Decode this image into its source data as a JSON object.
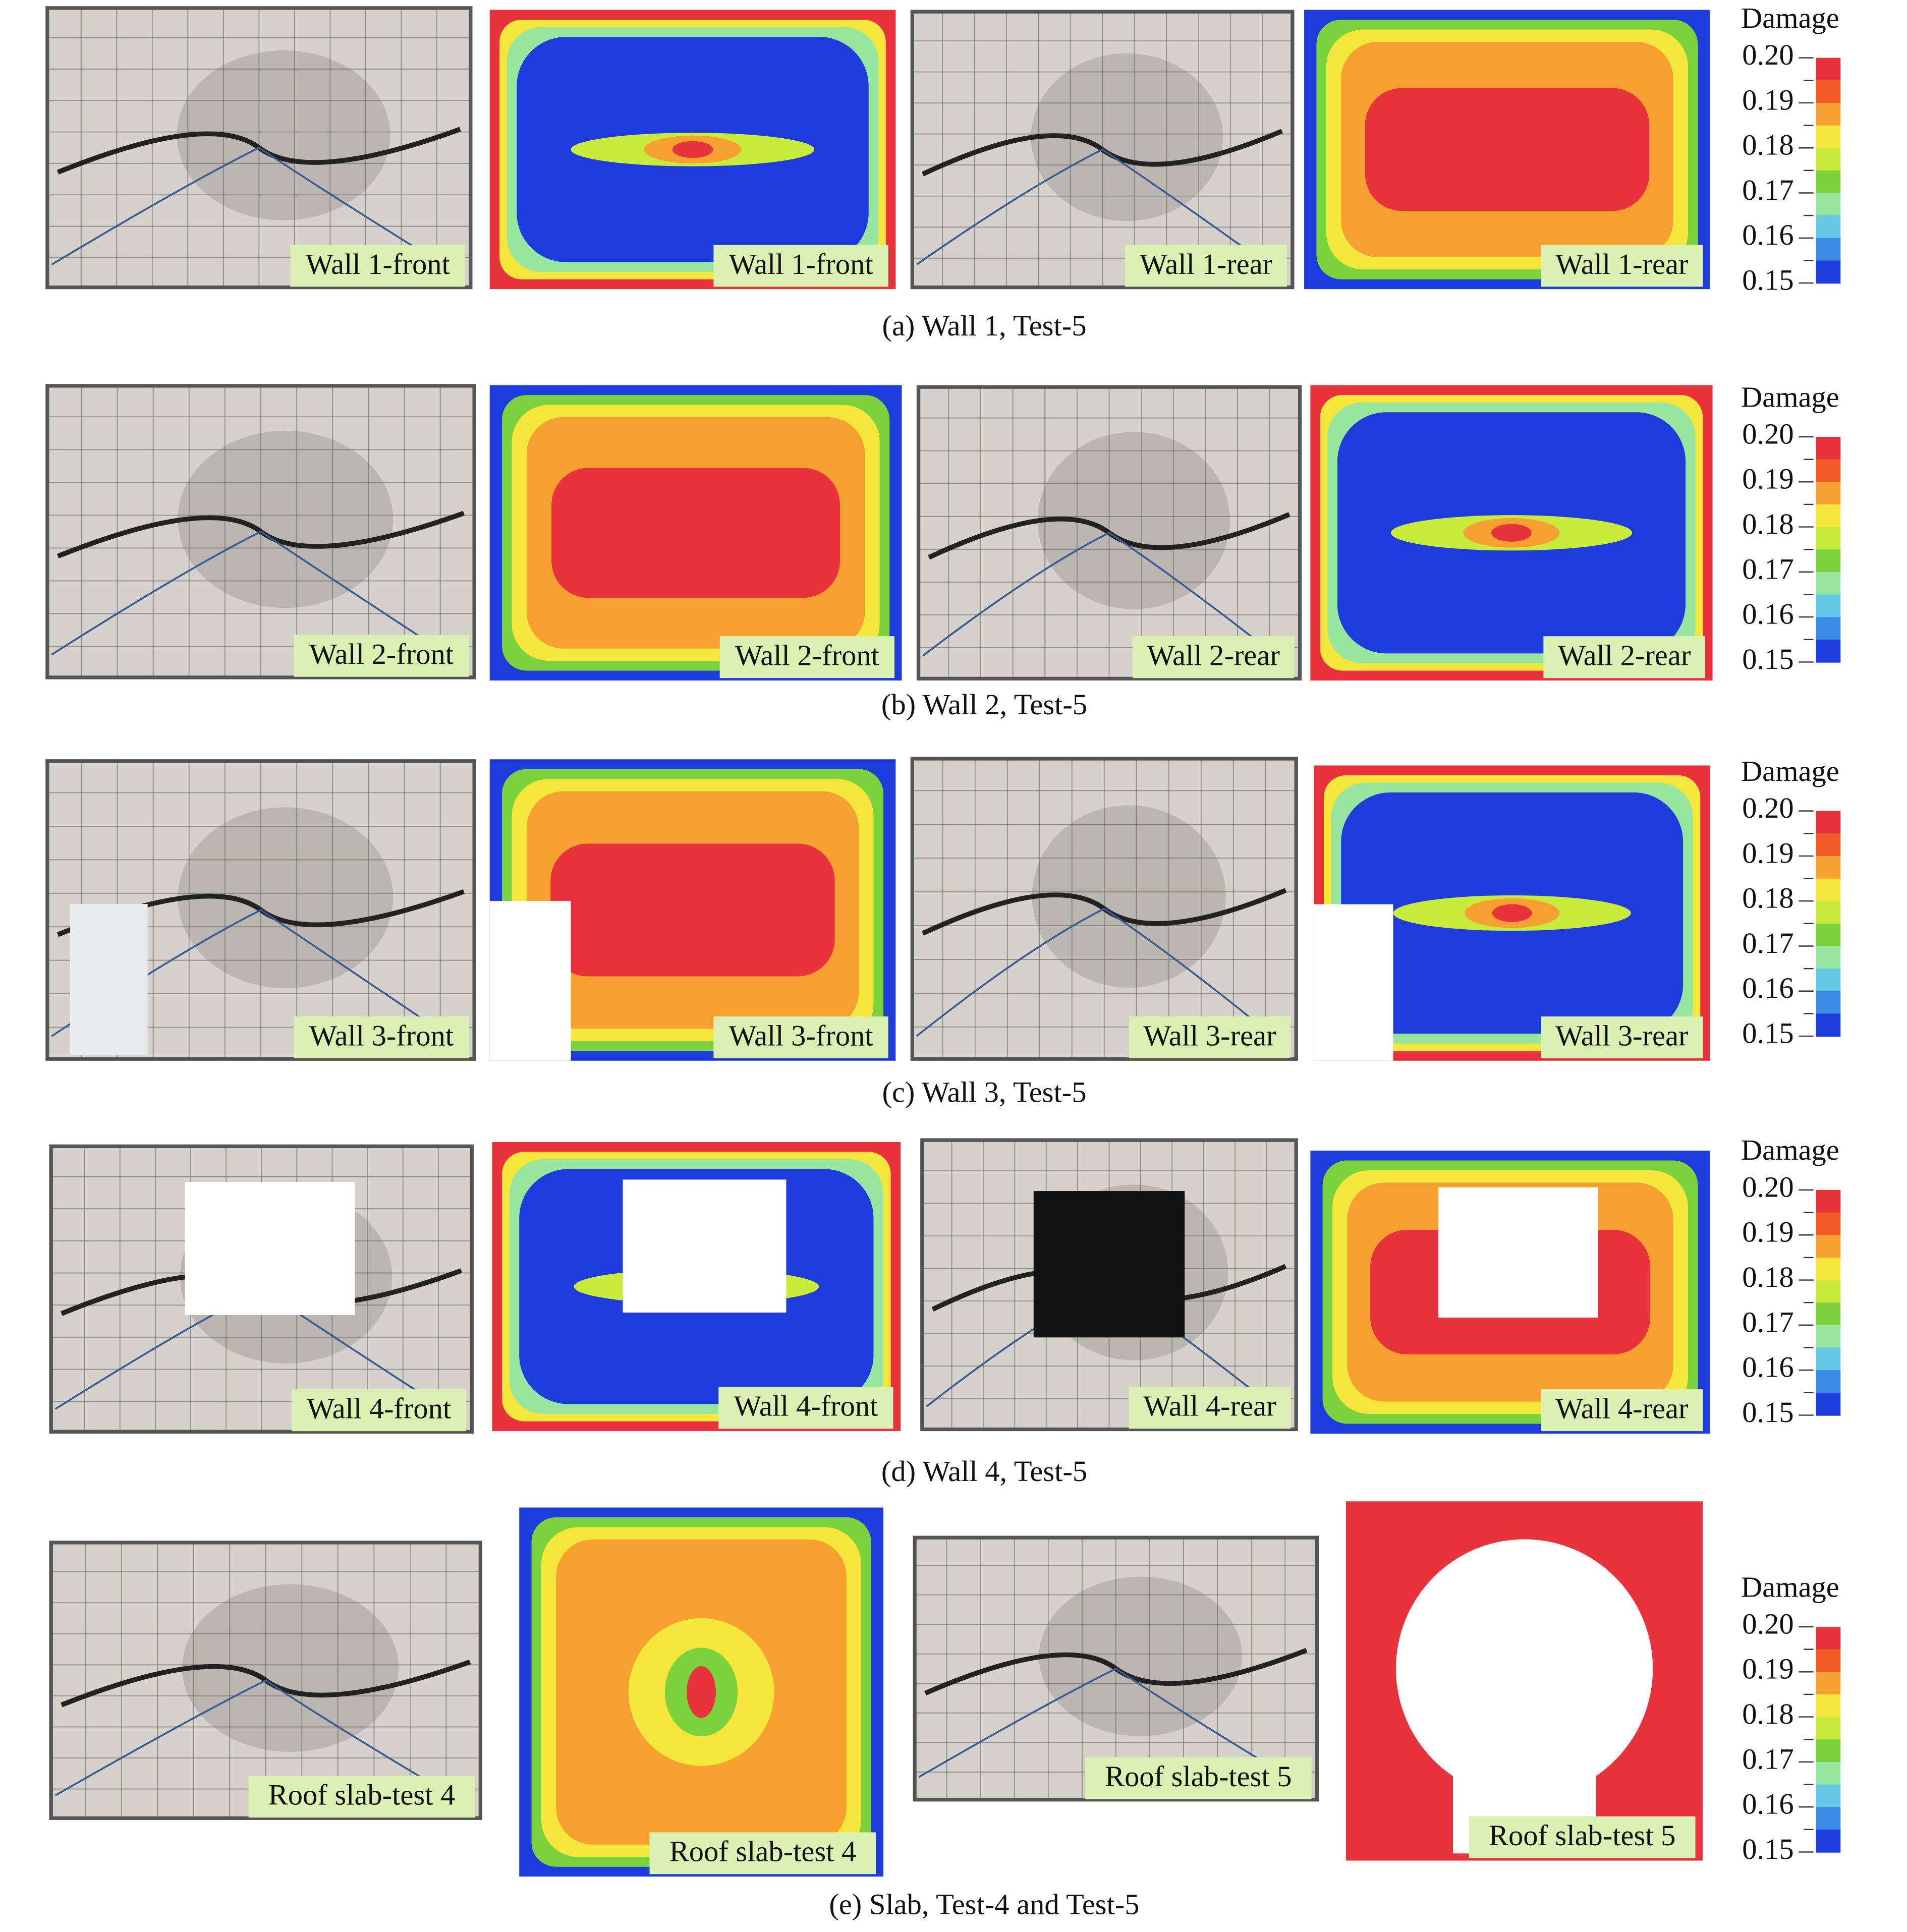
{
  "legend_colors": [
    "#e8323c",
    "#f25a28",
    "#f5a030",
    "#f5e63c",
    "#c8eb3c",
    "#7ad23c",
    "#96e6a0",
    "#64c8e6",
    "#3c8ce6",
    "#1e3cdc"
  ],
  "rows": [
    {
      "caption": "(a) Wall 1, Test-5",
      "panels": [
        "Wall 1-front",
        "Wall 1-front",
        "Wall 1-rear",
        "Wall 1-rear"
      ],
      "legend": {
        "title": "Damage",
        "ticks": [
          "0.20",
          "0.19",
          "0.18",
          "0.17",
          "0.16",
          "0.15"
        ]
      }
    },
    {
      "caption": "(b) Wall 2, Test-5",
      "panels": [
        "Wall 2-front",
        "Wall 2-front",
        "Wall 2-rear",
        "Wall 2-rear"
      ],
      "legend": {
        "title": "Damage",
        "ticks": [
          "0.20",
          "0.19",
          "0.18",
          "0.17",
          "0.16",
          "0.15"
        ]
      }
    },
    {
      "caption": "(c) Wall 3, Test-5",
      "panels": [
        "Wall 3-front",
        "Wall 3-front",
        "Wall 3-rear",
        "Wall 3-rear"
      ],
      "legend": {
        "title": "Damage",
        "ticks": [
          "0.20",
          "0.19",
          "0.18",
          "0.17",
          "0.16",
          "0.15"
        ]
      }
    },
    {
      "caption": "(d) Wall 4, Test-5",
      "panels": [
        "Wall 4-front",
        "Wall 4-front",
        "Wall 4-rear",
        "Wall 4-rear"
      ],
      "legend": {
        "title": "Damage",
        "ticks": [
          "0.20",
          "0.19",
          "0.18",
          "0.17",
          "0.16",
          "0.15"
        ]
      }
    },
    {
      "caption": "(e) Slab, Test-4 and Test-5",
      "panels": [
        "Roof slab-test 4",
        "Roof slab-test 4",
        "Roof slab-test 5",
        "Roof slab-test 5"
      ],
      "legend": {
        "title": "Damage",
        "ticks": [
          "0.20",
          "0.19",
          "0.18",
          "0.17",
          "0.16",
          "0.15"
        ]
      }
    }
  ]
}
